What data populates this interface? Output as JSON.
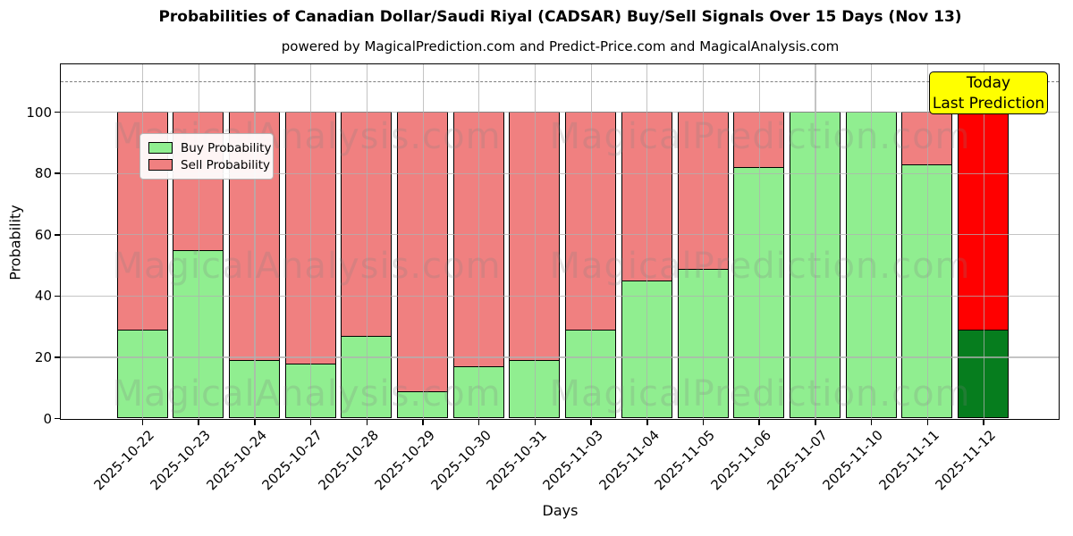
{
  "chart_data": {
    "type": "bar",
    "stacked": true,
    "title": "Probabilities of Canadian Dollar/Saudi Riyal (CADSAR) Buy/Sell Signals Over 15 Days (Nov 13)",
    "subtitle": "powered by MagicalPrediction.com and Predict-Price.com and MagicalAnalysis.com",
    "xlabel": "Days",
    "ylabel": "Probability",
    "ylim": [
      0,
      115.5
    ],
    "yticks": [
      0,
      20,
      40,
      60,
      80,
      100
    ],
    "dashed_line_y": 110,
    "grid": true,
    "legend_position": "upper-left",
    "categories": [
      "2025-10-22",
      "2025-10-23",
      "2025-10-24",
      "2025-10-27",
      "2025-10-28",
      "2025-10-29",
      "2025-10-30",
      "2025-10-31",
      "2025-11-03",
      "2025-11-04",
      "2025-11-05",
      "2025-11-06",
      "2025-11-07",
      "2025-11-10",
      "2025-11-11",
      "2025-11-12"
    ],
    "series": [
      {
        "name": "Buy Probability",
        "color": "#90EE90",
        "values": [
          29,
          55,
          19,
          18,
          27,
          9,
          17,
          19,
          29,
          45,
          49,
          82,
          100,
          100,
          83,
          29
        ]
      },
      {
        "name": "Sell Probability",
        "color": "#F08080",
        "values": [
          71,
          45,
          81,
          82,
          73,
          91,
          83,
          81,
          71,
          55,
          51,
          18,
          0,
          0,
          17,
          71
        ]
      }
    ],
    "today_bar": {
      "index": 15,
      "buy_color": "#067d1e",
      "sell_color": "#ff0000"
    },
    "annotation": {
      "line1": "Today",
      "line2": "Last Prediction",
      "bg_color": "#ffff00"
    },
    "watermark_left": "MagicalAnalysis.com",
    "watermark_right": "MagicalPrediction.com",
    "colors": {
      "grid": "#b0b0b0",
      "dashed_line": "#7f7f7f",
      "bar_edge": "#000000"
    }
  }
}
